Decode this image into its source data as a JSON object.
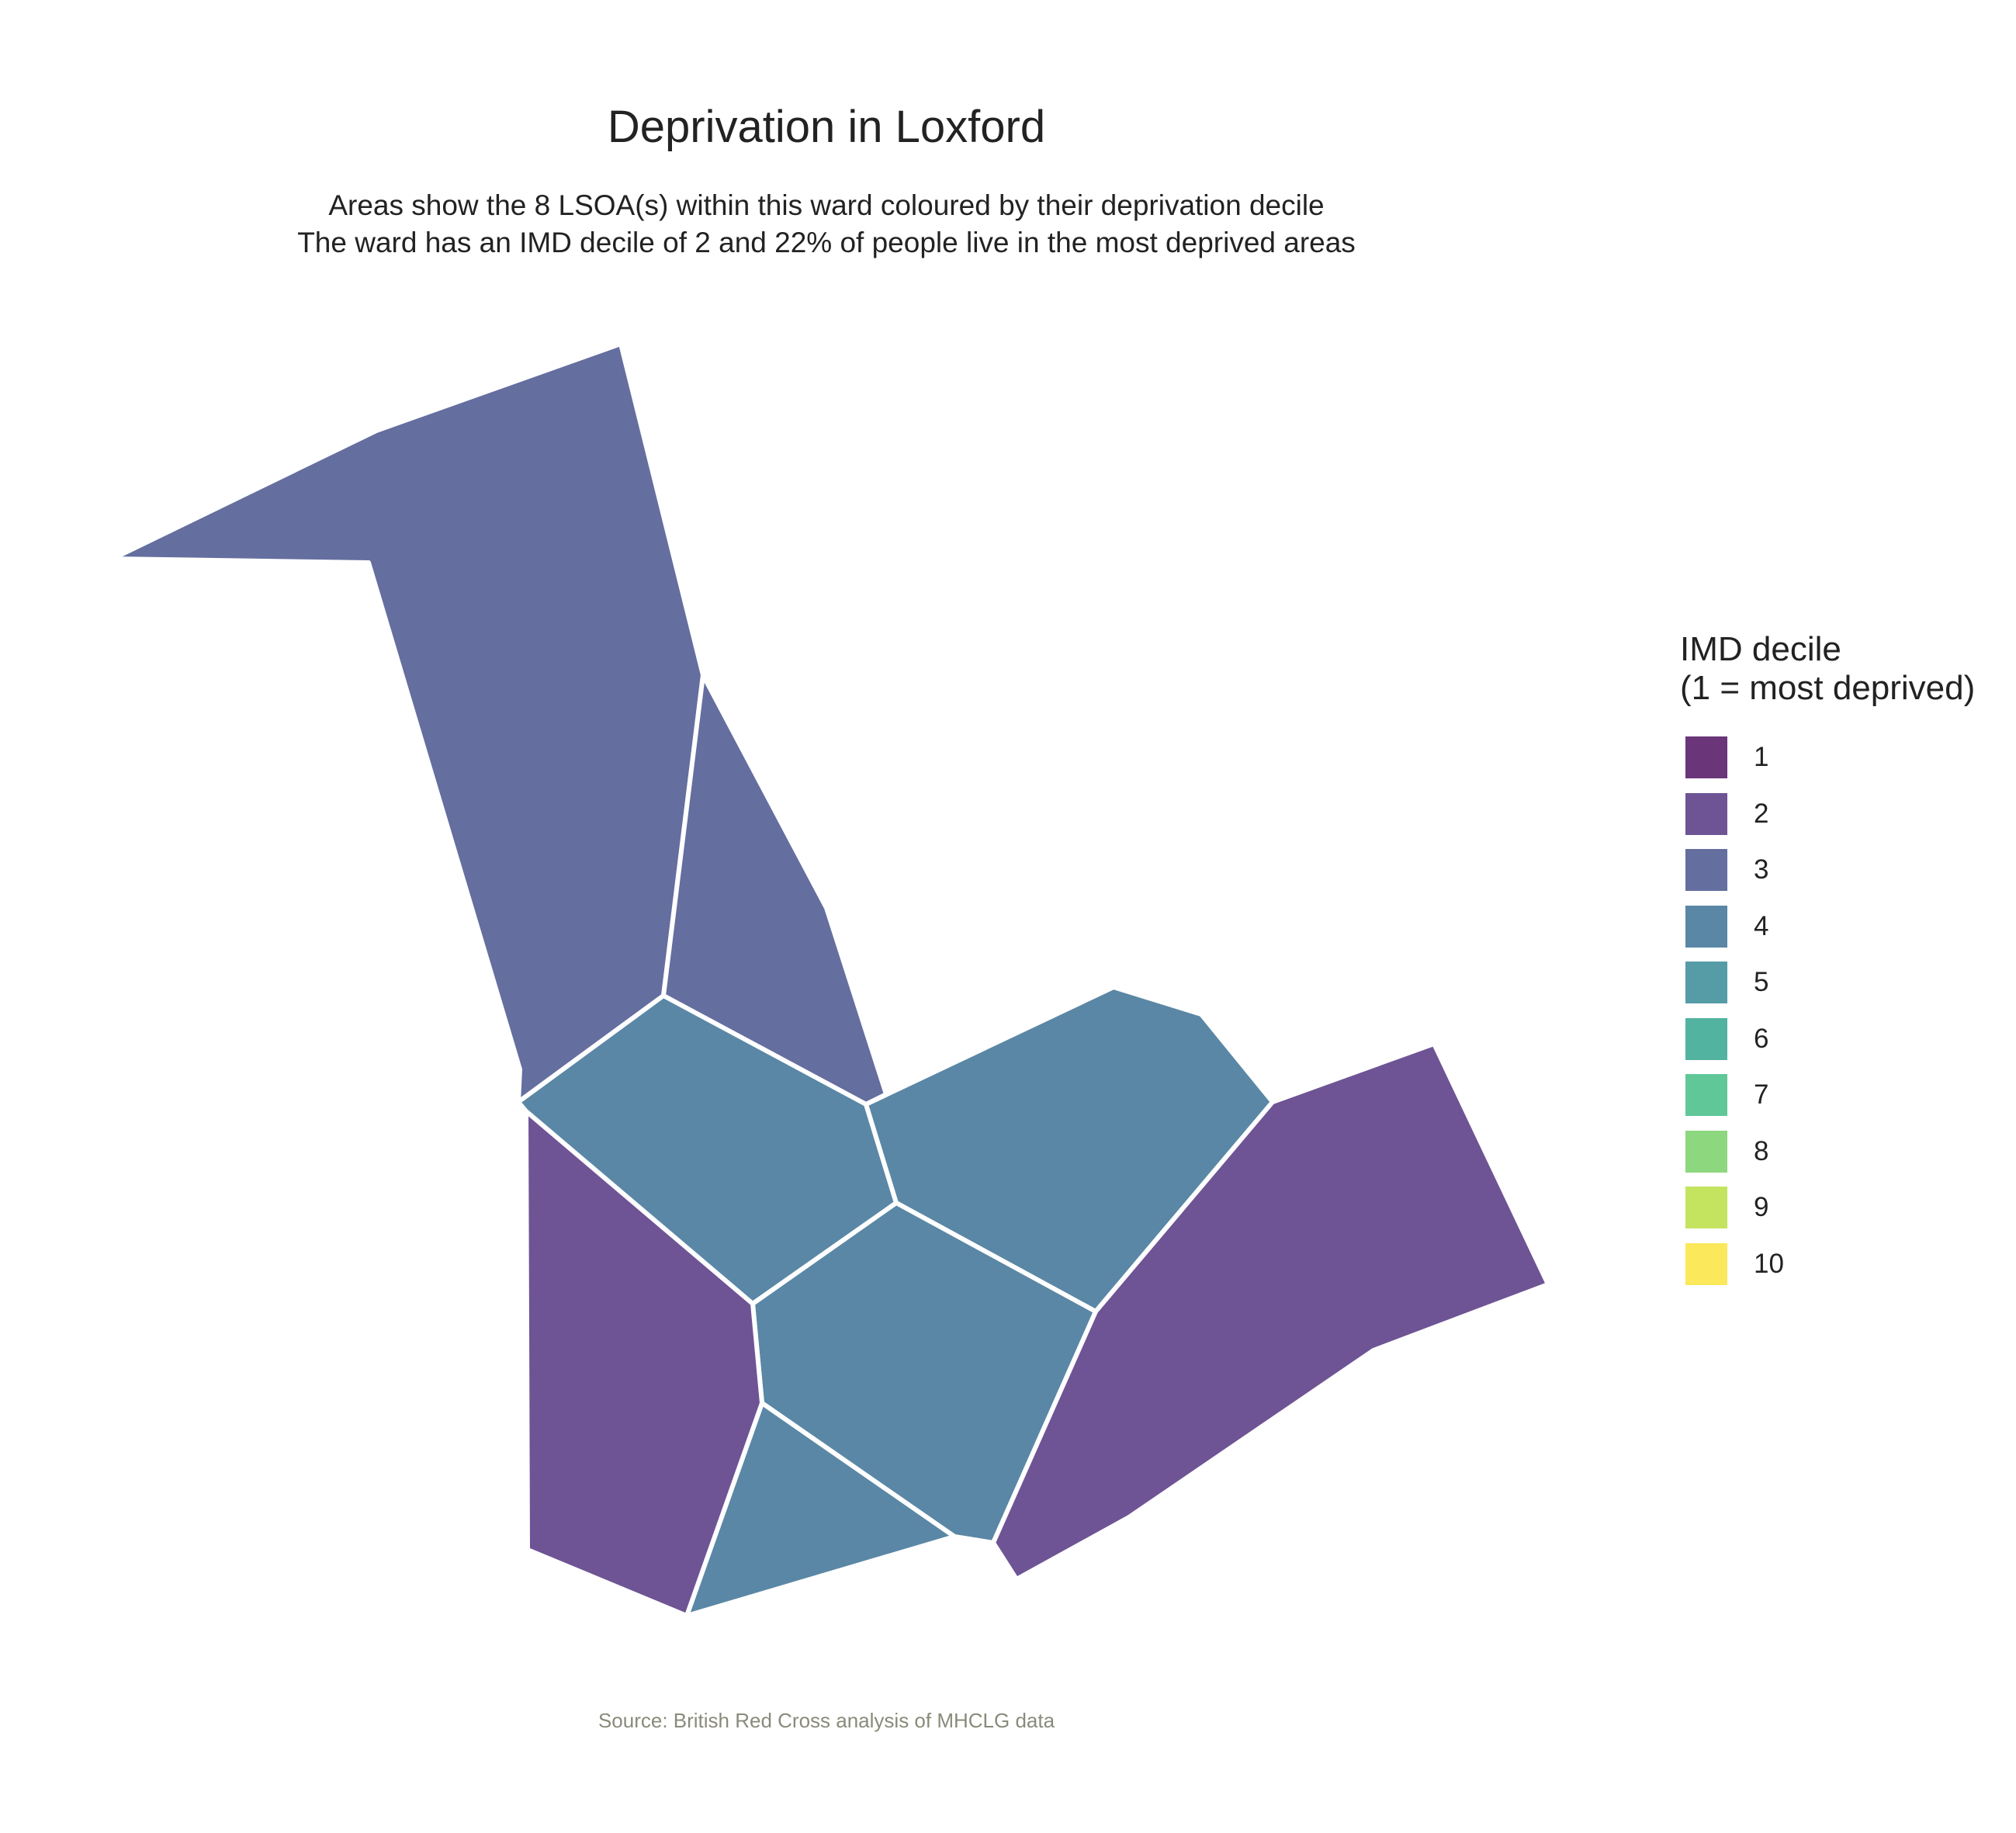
{
  "map": {
    "title": "Deprivation in Loxford",
    "subtitle_line1": "Areas show the 8 LSOA(s) within this ward coloured by their deprivation decile",
    "subtitle_line2": "The ward has an IMD decile of 2 and 22% of people live in the most deprived areas",
    "caption": "Source: British Red Cross analysis of MHCLG data",
    "areas": [
      {
        "name": "lsoa-north-west",
        "decile": 3
      },
      {
        "name": "lsoa-north-east-strip",
        "decile": 3
      },
      {
        "name": "lsoa-centre-west",
        "decile": 4
      },
      {
        "name": "lsoa-centre-east",
        "decile": 4
      },
      {
        "name": "lsoa-centre-south",
        "decile": 4
      },
      {
        "name": "lsoa-south-triangle",
        "decile": 4
      },
      {
        "name": "lsoa-south-west",
        "decile": 2
      },
      {
        "name": "lsoa-south-east",
        "decile": 2
      }
    ],
    "border_color": "#ffffff"
  },
  "legend": {
    "title_line1": "IMD decile",
    "title_line2": "(1 = most deprived)",
    "items": [
      {
        "label": "1",
        "color": "#6a3579"
      },
      {
        "label": "2",
        "color": "#6e5494"
      },
      {
        "label": "3",
        "color": "#646e9f"
      },
      {
        "label": "4",
        "color": "#5a87a5"
      },
      {
        "label": "5",
        "color": "#559ca6"
      },
      {
        "label": "6",
        "color": "#52b3a0"
      },
      {
        "label": "7",
        "color": "#60c898"
      },
      {
        "label": "8",
        "color": "#8dd77e"
      },
      {
        "label": "9",
        "color": "#c4e45f"
      },
      {
        "label": "10",
        "color": "#fbe85b"
      }
    ]
  }
}
